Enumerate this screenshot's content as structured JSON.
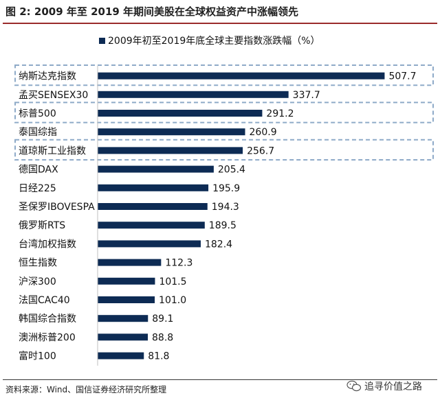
{
  "figure": {
    "title": "图 2: 2009 年至 2019 年期间美股在全球权益资产中涨幅领先",
    "source": "资料来源：Wind、国信证券经济研究所整理",
    "watermark": "追寻价值之路",
    "watermark_icon": "wechat-icon",
    "rule_color": "#9a2a2a"
  },
  "chart_data": {
    "type": "bar",
    "orientation": "horizontal",
    "categories": [
      "纳斯达克指数",
      "孟买SENSEX30",
      "标普500",
      "泰国综指",
      "道琼斯工业指数",
      "德国DAX",
      "日经225",
      "圣保罗IBOVESPA",
      "俄罗斯RTS",
      "台湾加权指数",
      "恒生指数",
      "沪深300",
      "法国CAC40",
      "韩国综合指数",
      "澳洲标普200",
      "富时100"
    ],
    "series": [
      {
        "name": "2009年初至2019年底全球主要指数涨跌幅（%）",
        "values": [
          507.7,
          337.7,
          291.2,
          260.9,
          256.7,
          205.4,
          195.9,
          194.3,
          189.5,
          182.4,
          112.3,
          101.5,
          101.0,
          89.1,
          88.8,
          81.8
        ],
        "labels": [
          "507.7",
          "337.7",
          "291.2",
          "260.9",
          "256.7",
          "205.4",
          "195.9",
          "194.3",
          "189.5",
          "182.4",
          "112.3",
          "101.5",
          "101.0",
          "89.1",
          "88.8",
          "81.8"
        ],
        "color": "#0d2b54"
      }
    ],
    "highlighted": [
      "纳斯达克指数",
      "标普500",
      "道琼斯工业指数"
    ],
    "highlight_color": "#8eaac8",
    "xlim": [
      0,
      540
    ],
    "legend_position": "top",
    "grid": false
  }
}
